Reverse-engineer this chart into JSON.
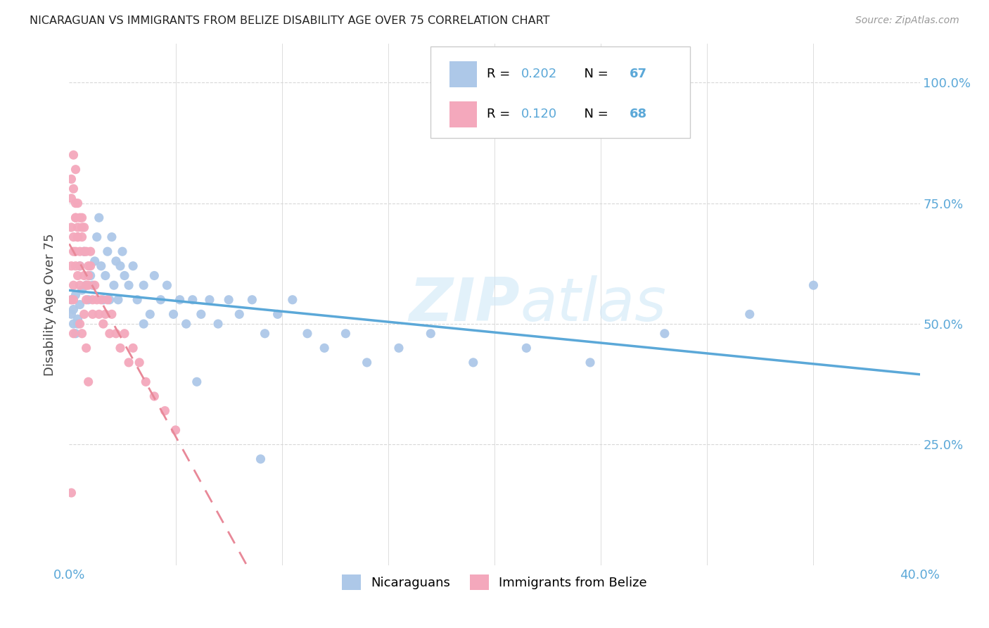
{
  "title": "NICARAGUAN VS IMMIGRANTS FROM BELIZE DISABILITY AGE OVER 75 CORRELATION CHART",
  "source": "Source: ZipAtlas.com",
  "ylabel": "Disability Age Over 75",
  "xlabel_nicaraguans": "Nicaraguans",
  "xlabel_belize": "Immigrants from Belize",
  "xlim": [
    0.0,
    0.4
  ],
  "ylim": [
    0.0,
    1.08
  ],
  "xtick_positions": [
    0.0,
    0.05,
    0.1,
    0.15,
    0.2,
    0.25,
    0.3,
    0.35,
    0.4
  ],
  "xtick_labels": [
    "0.0%",
    "",
    "",
    "",
    "",
    "",
    "",
    "",
    "40.0%"
  ],
  "ytick_positions": [
    0.0,
    0.25,
    0.5,
    0.75,
    1.0
  ],
  "ytick_labels": [
    "",
    "25.0%",
    "50.0%",
    "75.0%",
    "100.0%"
  ],
  "blue_color": "#adc8e8",
  "pink_color": "#f4a8bc",
  "line_blue_color": "#5ba8d8",
  "line_pink_color": "#e88898",
  "watermark_color": "#d0e8f8",
  "grid_color": "#d8d8d8",
  "tick_label_color": "#5ba8d8",
  "title_color": "#222222",
  "source_color": "#999999",
  "ylabel_color": "#444444",
  "legend_r1": "0.202",
  "legend_n1": "67",
  "legend_r2": "0.120",
  "legend_n2": "68",
  "nicaraguan_x": [
    0.001,
    0.002,
    0.001,
    0.003,
    0.002,
    0.004,
    0.003,
    0.005,
    0.004,
    0.006,
    0.005,
    0.008,
    0.007,
    0.01,
    0.009,
    0.012,
    0.011,
    0.013,
    0.015,
    0.014,
    0.016,
    0.018,
    0.017,
    0.02,
    0.019,
    0.022,
    0.021,
    0.024,
    0.023,
    0.026,
    0.028,
    0.025,
    0.03,
    0.032,
    0.035,
    0.038,
    0.04,
    0.043,
    0.046,
    0.049,
    0.052,
    0.055,
    0.058,
    0.062,
    0.066,
    0.07,
    0.075,
    0.08,
    0.086,
    0.092,
    0.098,
    0.105,
    0.112,
    0.12,
    0.13,
    0.14,
    0.155,
    0.17,
    0.19,
    0.215,
    0.245,
    0.28,
    0.32,
    0.35,
    0.09,
    0.06,
    0.035
  ],
  "nicaraguan_y": [
    0.52,
    0.5,
    0.55,
    0.48,
    0.53,
    0.51,
    0.56,
    0.54,
    0.5,
    0.57,
    0.62,
    0.58,
    0.65,
    0.6,
    0.55,
    0.63,
    0.58,
    0.68,
    0.62,
    0.72,
    0.55,
    0.65,
    0.6,
    0.68,
    0.55,
    0.63,
    0.58,
    0.62,
    0.55,
    0.6,
    0.58,
    0.65,
    0.62,
    0.55,
    0.58,
    0.52,
    0.6,
    0.55,
    0.58,
    0.52,
    0.55,
    0.5,
    0.55,
    0.52,
    0.55,
    0.5,
    0.55,
    0.52,
    0.55,
    0.48,
    0.52,
    0.55,
    0.48,
    0.45,
    0.48,
    0.42,
    0.45,
    0.48,
    0.42,
    0.45,
    0.42,
    0.48,
    0.52,
    0.58,
    0.22,
    0.38,
    0.5
  ],
  "belize_x": [
    0.001,
    0.001,
    0.002,
    0.001,
    0.002,
    0.003,
    0.002,
    0.003,
    0.004,
    0.003,
    0.004,
    0.005,
    0.004,
    0.005,
    0.006,
    0.005,
    0.006,
    0.007,
    0.006,
    0.007,
    0.008,
    0.007,
    0.008,
    0.009,
    0.008,
    0.009,
    0.01,
    0.009,
    0.01,
    0.011,
    0.011,
    0.012,
    0.013,
    0.014,
    0.015,
    0.016,
    0.017,
    0.018,
    0.019,
    0.02,
    0.022,
    0.024,
    0.026,
    0.028,
    0.03,
    0.033,
    0.036,
    0.04,
    0.045,
    0.05,
    0.001,
    0.002,
    0.003,
    0.004,
    0.005,
    0.006,
    0.007,
    0.008,
    0.009,
    0.002,
    0.003,
    0.004,
    0.005,
    0.001,
    0.002,
    0.003,
    0.001,
    0.002
  ],
  "belize_y": [
    0.55,
    0.62,
    0.58,
    0.7,
    0.65,
    0.72,
    0.68,
    0.75,
    0.7,
    0.65,
    0.68,
    0.72,
    0.6,
    0.65,
    0.7,
    0.62,
    0.68,
    0.65,
    0.72,
    0.6,
    0.65,
    0.7,
    0.58,
    0.62,
    0.55,
    0.6,
    0.65,
    0.58,
    0.62,
    0.55,
    0.52,
    0.58,
    0.55,
    0.52,
    0.55,
    0.5,
    0.52,
    0.55,
    0.48,
    0.52,
    0.48,
    0.45,
    0.48,
    0.42,
    0.45,
    0.42,
    0.38,
    0.35,
    0.32,
    0.28,
    0.8,
    0.78,
    0.82,
    0.75,
    0.5,
    0.48,
    0.52,
    0.45,
    0.38,
    0.85,
    0.72,
    0.68,
    0.58,
    0.76,
    0.55,
    0.62,
    0.15,
    0.48
  ]
}
